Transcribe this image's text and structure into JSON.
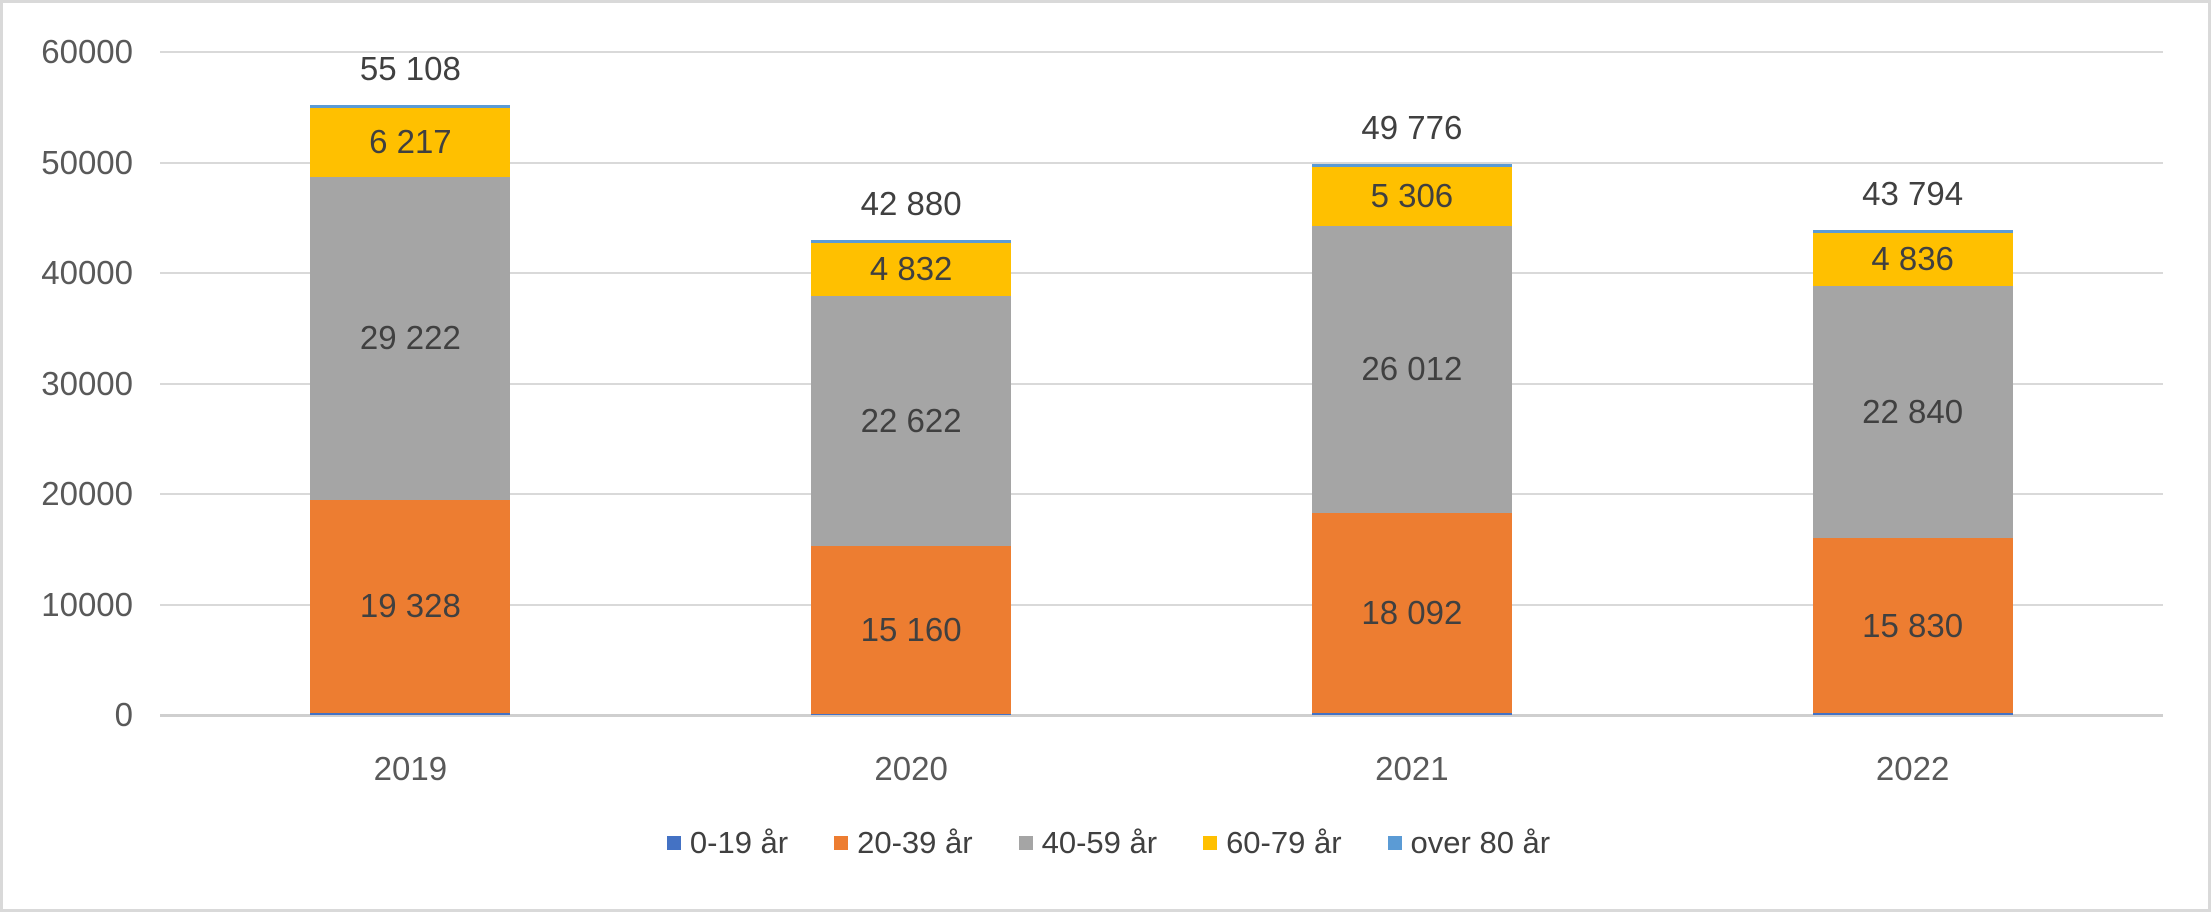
{
  "chart_data": {
    "type": "bar",
    "stacked": true,
    "title": "",
    "xlabel": "",
    "ylabel": "",
    "categories": [
      "2019",
      "2020",
      "2021",
      "2022"
    ],
    "series": [
      {
        "name": "0-19 år",
        "color": "#4472C4",
        "labels_shown": false,
        "estimated": true,
        "values": [
          170,
          133,
          183,
          144
        ]
      },
      {
        "name": "20-39 år",
        "color": "#ED7D31",
        "labels_shown": true,
        "estimated": false,
        "values": [
          19328,
          15160,
          18092,
          15830
        ]
      },
      {
        "name": "40-59 år",
        "color": "#A5A5A5",
        "labels_shown": true,
        "estimated": false,
        "values": [
          29222,
          22622,
          26012,
          22840
        ]
      },
      {
        "name": "60-79 år",
        "color": "#FFC000",
        "labels_shown": true,
        "estimated": false,
        "values": [
          6217,
          4832,
          5306,
          4836
        ]
      },
      {
        "name": "over 80 år",
        "color": "#5B9BD5",
        "labels_shown": false,
        "estimated": true,
        "values": [
          171,
          133,
          183,
          144
        ]
      }
    ],
    "totals": [
      55108,
      42880,
      49776,
      43794
    ],
    "segment_labels": {
      "20-39 år": [
        "19 328",
        "15 160",
        "18 092",
        "15 830"
      ],
      "40-59 år": [
        "29 222",
        "22 622",
        "26 012",
        "22 840"
      ],
      "60-79 år": [
        "6 217",
        "4 832",
        "5 306",
        "4 836"
      ]
    },
    "total_labels": [
      "55 108",
      "42 880",
      "49 776",
      "43 794"
    ],
    "y_axis": {
      "min": 0,
      "max": 60000,
      "step": 10000,
      "tick_labels": [
        "0",
        "10000",
        "20000",
        "30000",
        "40000",
        "50000",
        "60000"
      ]
    },
    "grid": true,
    "legend_position": "bottom",
    "note": "0-19 år and over 80 år segments appear only as thin unlabeled slivers; their values are estimated as (total minus labeled segments) split evenly.",
    "styles": {
      "background": "#FFFFFF",
      "border_color": "#D9D9D9",
      "grid_color": "#D9D9D9",
      "axis_text_color": "#595959",
      "label_text_color": "#404040"
    }
  }
}
